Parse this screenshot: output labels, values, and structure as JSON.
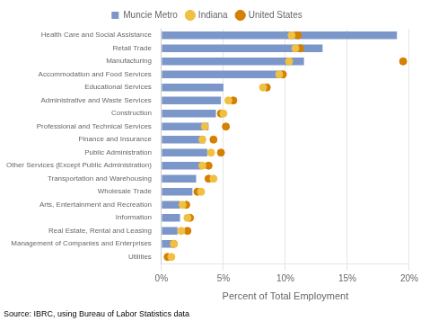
{
  "chart_data": {
    "type": "bar",
    "orientation": "horizontal",
    "categories": [
      "Health Care and Social Assistance",
      "Retail Trade",
      "Manufacturing",
      "Accommodation and Food Services",
      "Educational Services",
      "Administrative and Waste Services",
      "Construction",
      "Professional and Technical Services",
      "Finance and Insurance",
      "Public Administration",
      "Other Services (Except Public Administration)",
      "Transportation and Warehousing",
      "Wholesale Trade",
      "Arts, Entertainment and Recreation",
      "Information",
      "Real Estate, Rental and Leasing",
      "Management of Companies and Enterprises",
      "Utilities"
    ],
    "series": [
      {
        "name": "Muncie Metro",
        "type": "bar",
        "color": "#7b96c8",
        "values": [
          19.0,
          13.0,
          11.5,
          9.8,
          5.0,
          4.8,
          4.4,
          3.8,
          3.5,
          3.7,
          3.2,
          2.8,
          2.5,
          1.5,
          1.5,
          1.3,
          1.0,
          0.0
        ]
      },
      {
        "name": "Indiana",
        "type": "scatter",
        "marker": "circle",
        "color": "#f0c040",
        "values": [
          10.5,
          10.8,
          10.3,
          9.5,
          8.2,
          5.4,
          5.0,
          3.5,
          3.3,
          4.0,
          3.3,
          4.2,
          3.2,
          1.7,
          2.1,
          1.6,
          1.0,
          0.8
        ]
      },
      {
        "name": "United States",
        "type": "scatter",
        "marker": "circle",
        "color": "#d48000",
        "values": [
          11.0,
          11.2,
          19.5,
          9.8,
          8.5,
          5.8,
          4.8,
          5.2,
          4.2,
          4.8,
          3.8,
          3.8,
          2.9,
          2.0,
          2.3,
          2.1,
          1.0,
          0.5
        ]
      }
    ],
    "xlabel": "Percent of Total Employment",
    "xlim": [
      0,
      20
    ],
    "xticks": [
      {
        "value": 0,
        "label": "0%"
      },
      {
        "value": 5,
        "label": "5%"
      },
      {
        "value": 10,
        "label": "10%"
      },
      {
        "value": 15,
        "label": "15%"
      },
      {
        "value": 20,
        "label": "20%"
      }
    ],
    "grid": "x",
    "legend": "top",
    "annotations": [
      "Source: IBRC, using Bureau of Labor Statistics data"
    ]
  }
}
